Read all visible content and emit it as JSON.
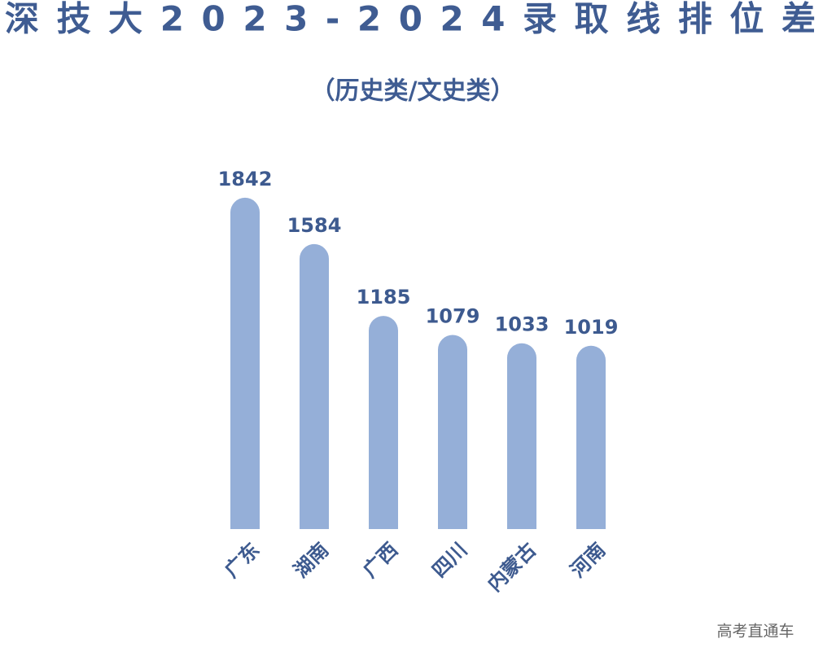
{
  "chart_data": {
    "type": "bar",
    "title": "深技大2023-2024录取线排位差",
    "subtitle": "（历史类/文史类）",
    "categories": [
      "广东",
      "湖南",
      "广西",
      "四川",
      "内蒙古",
      "河南"
    ],
    "values": [
      1842,
      1584,
      1185,
      1079,
      1033,
      1019
    ],
    "color": "#95afd8",
    "watermark": "高考直通车"
  }
}
